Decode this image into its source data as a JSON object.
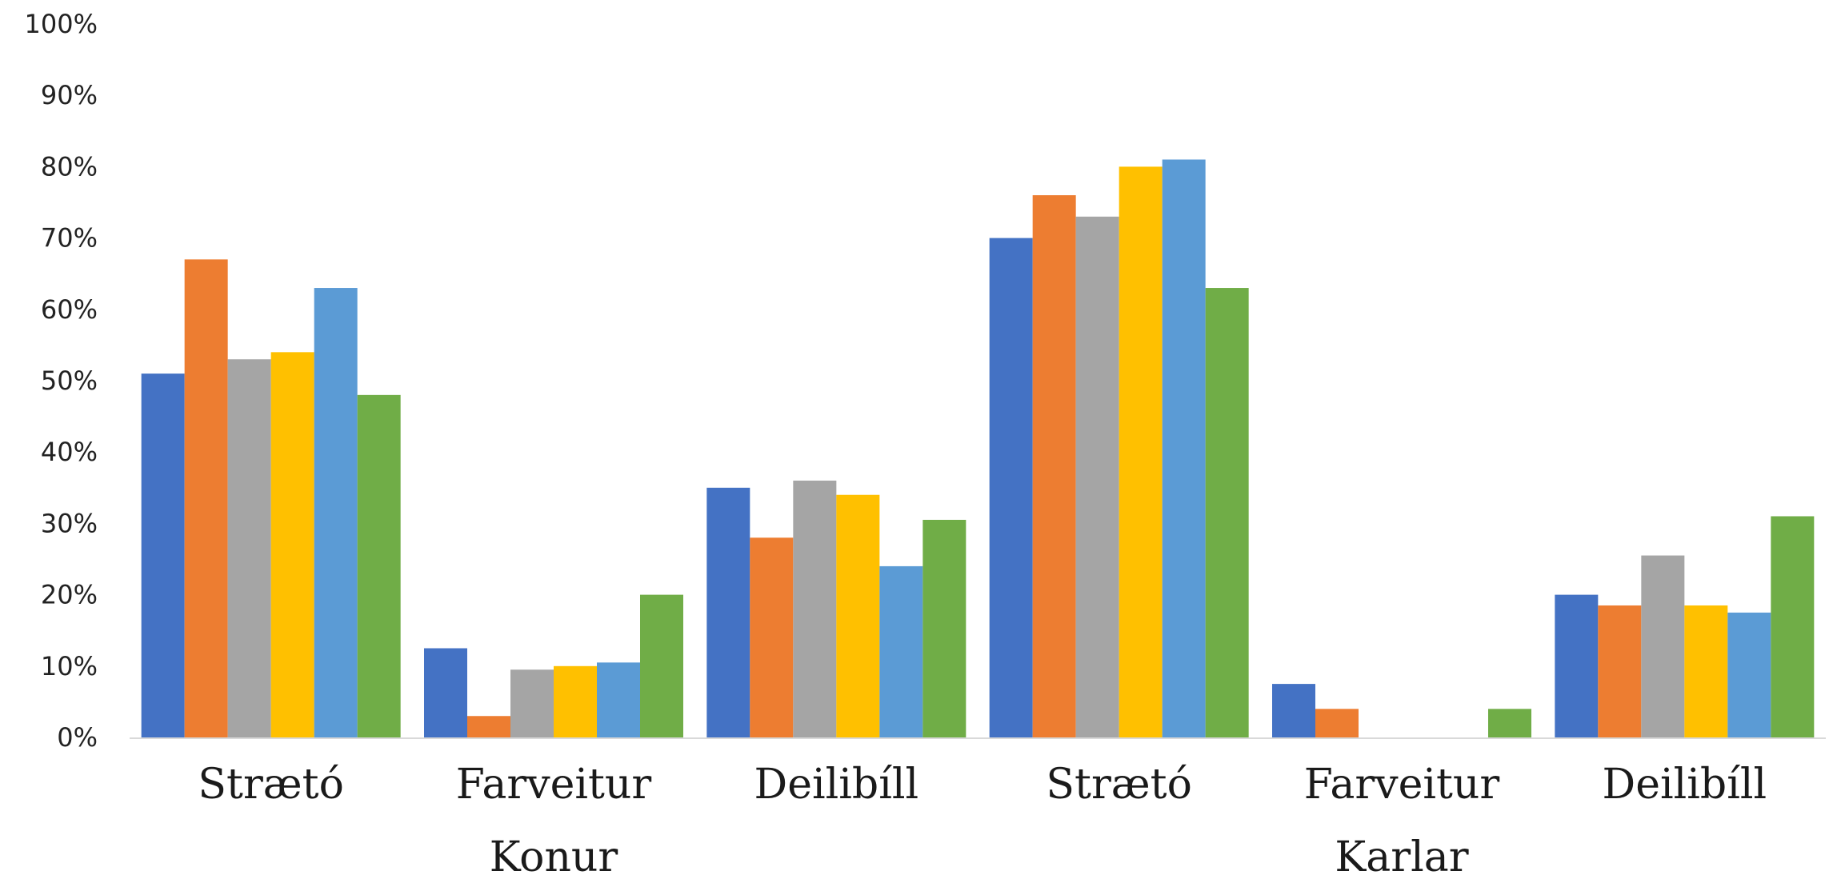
{
  "chart_data": {
    "type": "bar",
    "title": "",
    "xlabel": "",
    "ylabel": "",
    "ylim": [
      0,
      100
    ],
    "y_ticks": [
      "0%",
      "10%",
      "20%",
      "30%",
      "40%",
      "50%",
      "60%",
      "70%",
      "80%",
      "90%",
      "100%"
    ],
    "grid": false,
    "legend": "none",
    "groups": [
      "Konur",
      "Karlar"
    ],
    "categories": [
      "Strætó",
      "Farveitur",
      "Deilibíll"
    ],
    "series_colors": [
      "#4472C4",
      "#ED7D31",
      "#A5A5A5",
      "#FFC000",
      "#5B9BD5",
      "#70AD47"
    ],
    "values": [
      {
        "group": "Konur",
        "category": "Strætó",
        "bars": [
          51,
          67,
          53,
          54,
          63,
          48
        ]
      },
      {
        "group": "Konur",
        "category": "Farveitur",
        "bars": [
          12.5,
          3,
          9.5,
          10,
          10.5,
          20
        ]
      },
      {
        "group": "Konur",
        "category": "Deilibíll",
        "bars": [
          35,
          28,
          36,
          34,
          24,
          30.5
        ]
      },
      {
        "group": "Karlar",
        "category": "Strætó",
        "bars": [
          70,
          76,
          73,
          80,
          81,
          63
        ]
      },
      {
        "group": "Karlar",
        "category": "Farveitur",
        "bars": [
          7.5,
          4,
          0,
          0,
          0,
          4
        ]
      },
      {
        "group": "Karlar",
        "category": "Deilibíll",
        "bars": [
          20,
          18.5,
          25.5,
          18.5,
          17.5,
          31
        ]
      }
    ]
  }
}
